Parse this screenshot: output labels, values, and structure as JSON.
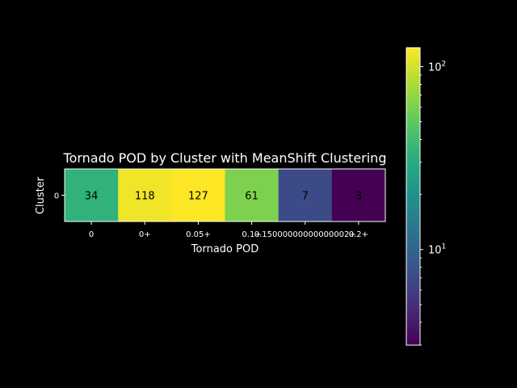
{
  "chart_data": {
    "type": "heatmap",
    "title": "Tornado POD by Cluster with MeanShift Clustering",
    "xlabel": "Tornado POD",
    "ylabel": "Cluster",
    "x_categories": [
      "0",
      "0+",
      "0.05+",
      "0.1+",
      "0.15000000000000002+",
      "0.2+"
    ],
    "y_categories": [
      "0"
    ],
    "values": [
      [
        34,
        118,
        127,
        61,
        7,
        3
      ]
    ],
    "colorbar": {
      "scale": "log",
      "range": [
        3,
        127
      ],
      "ticks": [
        {
          "value": 10,
          "base": "10",
          "exp": "1"
        },
        {
          "value": 100,
          "base": "10",
          "exp": "2"
        }
      ],
      "colormap": "viridis"
    },
    "cell_text_color": "#000000",
    "background": "#000000",
    "foreground": "#ffffff"
  }
}
